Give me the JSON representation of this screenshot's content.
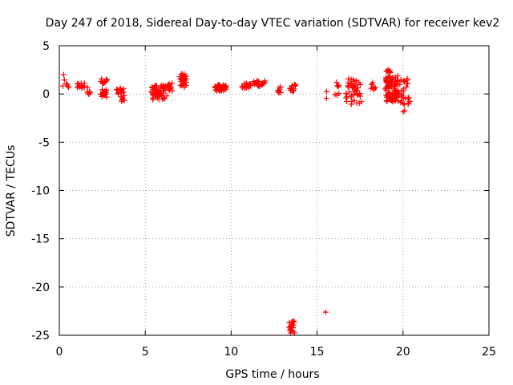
{
  "chart_data": {
    "type": "scatter",
    "title": "Day 247 of 2018, Sidereal Day-to-day VTEC variation (SDTVAR) for receiver kev2",
    "xlabel": "GPS time / hours",
    "ylabel": "SDTVAR / TECUs",
    "xlim": [
      0,
      25
    ],
    "ylim": [
      -25,
      5
    ],
    "xticks": [
      0,
      5,
      10,
      15,
      20,
      25
    ],
    "yticks": [
      5,
      0,
      -5,
      -10,
      -15,
      -20,
      -25
    ],
    "grid": true,
    "marker": "plus",
    "series": [
      {
        "name": "SDTVAR",
        "color": "#ff0000",
        "clusters": [
          {
            "x": [
              0.2,
              0.3
            ],
            "y": [
              0.3,
              2.0
            ],
            "n": 3
          },
          {
            "x": [
              0.4,
              0.55
            ],
            "y": [
              0.6,
              1.1
            ],
            "n": 4
          },
          {
            "x": [
              1.0,
              1.5
            ],
            "y": [
              0.5,
              1.2
            ],
            "n": 14
          },
          {
            "x": [
              1.6,
              1.8
            ],
            "y": [
              -0.1,
              0.8
            ],
            "n": 6
          },
          {
            "x": [
              2.4,
              2.8
            ],
            "y": [
              1.1,
              1.6
            ],
            "n": 10
          },
          {
            "x": [
              2.4,
              2.8
            ],
            "y": [
              -0.6,
              0.5
            ],
            "n": 16
          },
          {
            "x": [
              3.3,
              3.8
            ],
            "y": [
              -0.3,
              0.6
            ],
            "n": 14
          },
          {
            "x": [
              3.6,
              3.8
            ],
            "y": [
              -0.9,
              -0.2
            ],
            "n": 5
          },
          {
            "x": [
              5.3,
              6.3
            ],
            "y": [
              -0.6,
              0.9
            ],
            "n": 55
          },
          {
            "x": [
              6.3,
              6.6
            ],
            "y": [
              0.3,
              1.2
            ],
            "n": 10
          },
          {
            "x": [
              7.0,
              7.4
            ],
            "y": [
              0.7,
              2.1
            ],
            "n": 28
          },
          {
            "x": [
              9.0,
              9.8
            ],
            "y": [
              0.3,
              1.0
            ],
            "n": 30
          },
          {
            "x": [
              10.6,
              11.2
            ],
            "y": [
              0.6,
              1.1
            ],
            "n": 18
          },
          {
            "x": [
              11.2,
              12.0
            ],
            "y": [
              0.8,
              1.4
            ],
            "n": 22
          },
          {
            "x": [
              12.7,
              12.9
            ],
            "y": [
              0.1,
              0.9
            ],
            "n": 8
          },
          {
            "x": [
              13.4,
              13.8
            ],
            "y": [
              0.3,
              1.0
            ],
            "n": 14
          },
          {
            "x": [
              13.35,
              13.7
            ],
            "y": [
              -24.8,
              -23.4
            ],
            "n": 20
          },
          {
            "x": [
              15.5,
              15.5
            ],
            "y": [
              -22.6,
              -22.6
            ],
            "n": 1
          },
          {
            "x": [
              15.5,
              15.6
            ],
            "y": [
              0.2,
              0.3
            ],
            "n": 1
          },
          {
            "x": [
              15.5,
              15.6
            ],
            "y": [
              -0.5,
              -0.4
            ],
            "n": 1
          },
          {
            "x": [
              16.1,
              16.3
            ],
            "y": [
              0.7,
              1.2
            ],
            "n": 4
          },
          {
            "x": [
              16.0,
              16.3
            ],
            "y": [
              -0.2,
              0.2
            ],
            "n": 3
          },
          {
            "x": [
              16.6,
              17.6
            ],
            "y": [
              -1.1,
              1.6
            ],
            "n": 45
          },
          {
            "x": [
              18.1,
              18.4
            ],
            "y": [
              0.4,
              1.2
            ],
            "n": 8
          },
          {
            "x": [
              19.0,
              19.3
            ],
            "y": [
              2.2,
              2.7
            ],
            "n": 6
          },
          {
            "x": [
              18.9,
              19.8
            ],
            "y": [
              -0.8,
              2.0
            ],
            "n": 90
          },
          {
            "x": [
              19.8,
              20.4
            ],
            "y": [
              -1.2,
              1.7
            ],
            "n": 25
          },
          {
            "x": [
              20.0,
              20.1
            ],
            "y": [
              -2.1,
              -1.7
            ],
            "n": 2
          }
        ]
      }
    ]
  }
}
